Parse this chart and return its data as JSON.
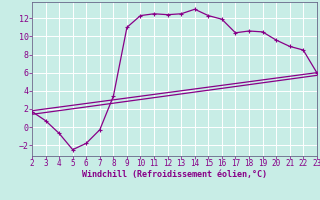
{
  "xlabel": "Windchill (Refroidissement éolien,°C)",
  "background_color": "#c8ede6",
  "grid_color": "#aaddcc",
  "line_color": "#880088",
  "axis_color": "#666688",
  "xlim": [
    2,
    23
  ],
  "ylim": [
    -3.2,
    13.8
  ],
  "xticks": [
    2,
    3,
    4,
    5,
    6,
    7,
    8,
    9,
    10,
    11,
    12,
    13,
    14,
    15,
    16,
    17,
    18,
    19,
    20,
    21,
    22,
    23
  ],
  "yticks": [
    -2,
    0,
    2,
    4,
    6,
    8,
    10,
    12
  ],
  "line1_x": [
    2,
    3,
    4,
    5,
    6,
    7,
    8,
    9,
    10,
    11,
    12,
    13,
    14,
    15,
    16,
    17,
    18,
    19,
    20,
    21,
    22,
    23
  ],
  "line1_y": [
    1.7,
    0.7,
    -0.7,
    -2.5,
    -1.8,
    -0.3,
    3.4,
    11.0,
    12.3,
    12.5,
    12.4,
    12.5,
    13.0,
    12.3,
    11.9,
    10.4,
    10.6,
    10.5,
    9.6,
    8.9,
    8.5,
    6.0
  ],
  "line2_x": [
    2,
    23
  ],
  "line2_y": [
    1.8,
    6.0
  ],
  "line3_x": [
    2,
    23
  ],
  "line3_y": [
    1.4,
    5.7
  ],
  "tick_fontsize": 5.5,
  "xlabel_fontsize": 6.0
}
